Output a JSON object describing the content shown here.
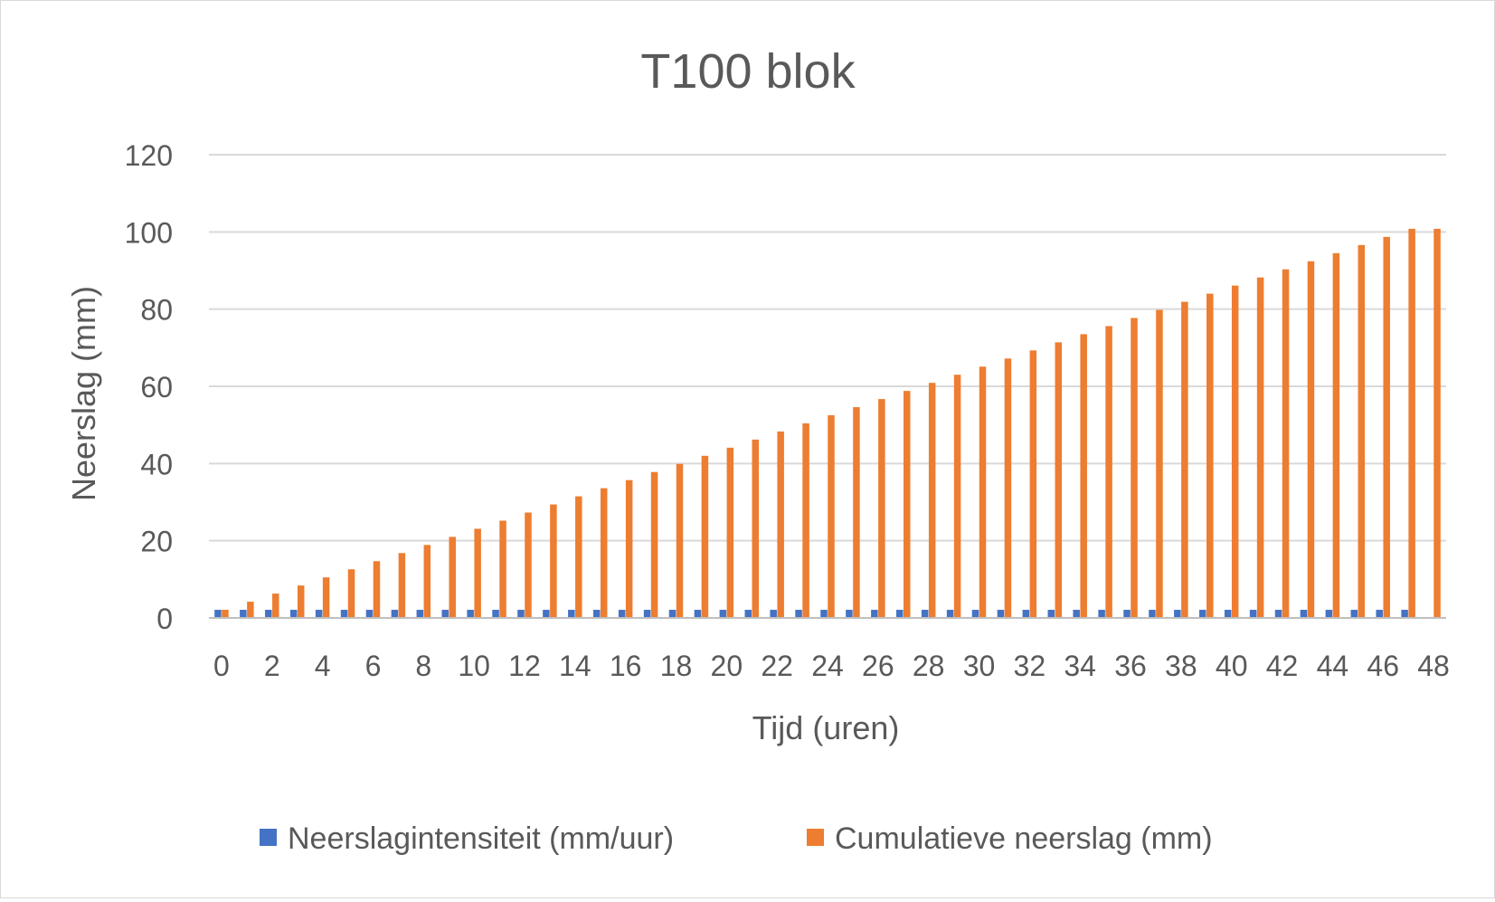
{
  "chart_data": {
    "type": "bar",
    "title": "T100 blok",
    "xlabel": "Tijd (uren)",
    "ylabel": "Neerslag (mm)",
    "ylim": [
      0,
      120
    ],
    "yticks": [
      "0",
      "20",
      "40",
      "60",
      "80",
      "100",
      "120"
    ],
    "grid": true,
    "legend_position": "bottom",
    "categories": [
      "0",
      "1",
      "2",
      "3",
      "4",
      "5",
      "6",
      "7",
      "8",
      "9",
      "10",
      "11",
      "12",
      "13",
      "14",
      "15",
      "16",
      "17",
      "18",
      "19",
      "20",
      "21",
      "22",
      "23",
      "24",
      "25",
      "26",
      "27",
      "28",
      "29",
      "30",
      "31",
      "32",
      "33",
      "34",
      "35",
      "36",
      "37",
      "38",
      "39",
      "40",
      "41",
      "42",
      "43",
      "44",
      "45",
      "46",
      "47",
      "48"
    ],
    "xtick_labels": [
      "0",
      "2",
      "4",
      "6",
      "8",
      "10",
      "12",
      "14",
      "16",
      "18",
      "20",
      "22",
      "24",
      "26",
      "28",
      "30",
      "32",
      "34",
      "36",
      "38",
      "40",
      "42",
      "44",
      "46",
      "48"
    ],
    "series": [
      {
        "name": "Neerslagintensiteit (mm/uur)",
        "color": "#4472c4",
        "values": [
          2.1,
          2.1,
          2.1,
          2.1,
          2.1,
          2.1,
          2.1,
          2.1,
          2.1,
          2.1,
          2.1,
          2.1,
          2.1,
          2.1,
          2.1,
          2.1,
          2.1,
          2.1,
          2.1,
          2.1,
          2.1,
          2.1,
          2.1,
          2.1,
          2.1,
          2.1,
          2.1,
          2.1,
          2.1,
          2.1,
          2.1,
          2.1,
          2.1,
          2.1,
          2.1,
          2.1,
          2.1,
          2.1,
          2.1,
          2.1,
          2.1,
          2.1,
          2.1,
          2.1,
          2.1,
          2.1,
          2.1,
          2.1,
          0
        ]
      },
      {
        "name": "Cumulatieve neerslag (mm)",
        "color": "#ed7d31",
        "values": [
          2.1,
          4.2,
          6.3,
          8.4,
          10.5,
          12.6,
          14.7,
          16.8,
          18.9,
          21.0,
          23.1,
          25.2,
          27.3,
          29.4,
          31.5,
          33.6,
          35.7,
          37.8,
          39.9,
          42.0,
          44.1,
          46.2,
          48.3,
          50.4,
          52.5,
          54.6,
          56.7,
          58.8,
          60.9,
          63.0,
          65.1,
          67.2,
          69.3,
          71.4,
          73.5,
          75.6,
          77.7,
          79.8,
          81.9,
          84.0,
          86.1,
          88.2,
          90.3,
          92.4,
          94.5,
          96.6,
          98.7,
          100.8,
          100.8
        ]
      }
    ]
  }
}
